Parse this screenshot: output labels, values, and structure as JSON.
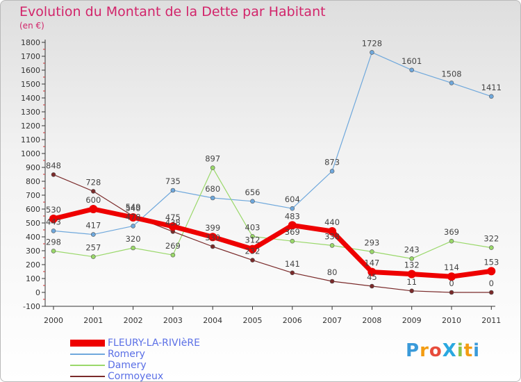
{
  "title": "Evolution du Montant de la Dette par Habitant",
  "subtitle": "(en €)",
  "logo": {
    "text": "ProXiti",
    "letters": [
      "P",
      "r",
      "o",
      "X",
      "i",
      "t",
      "i"
    ],
    "colors": [
      "#3a9ad9",
      "#f39c12",
      "#e74c3c",
      "#2aa8e0",
      "#8bc34a",
      "#f39c12",
      "#3a9ad9"
    ]
  },
  "chart_data": {
    "type": "line",
    "x": [
      "2000",
      "2001",
      "2002",
      "2003",
      "2004",
      "2005",
      "2006",
      "2007",
      "2008",
      "2009",
      "2010",
      "2011"
    ],
    "ylim": [
      -100,
      1800
    ],
    "yticks": [
      "-100",
      "0",
      "100",
      "200",
      "300",
      "400",
      "500",
      "600",
      "700",
      "800",
      "900",
      "1000",
      "1100",
      "1200",
      "1300",
      "1400",
      "1500",
      "1600",
      "1700",
      "1800"
    ],
    "grid": false,
    "series": [
      {
        "name": "FLEURY-LA-RIVIèRE",
        "color": "#ee0000",
        "width": 7,
        "marker": 6,
        "values": [
          530,
          600,
          540,
          475,
          399,
          312,
          483,
          440,
          147,
          132,
          114,
          153
        ],
        "labels": [
          "530",
          "600",
          "540",
          "475",
          "399",
          "312",
          "483",
          "440",
          "147",
          "132",
          "114",
          "153"
        ]
      },
      {
        "name": "Romery",
        "color": "#6fa8dc",
        "width": 1.2,
        "marker": 3,
        "values": [
          443,
          417,
          478,
          735,
          680,
          656,
          604,
          873,
          1728,
          1601,
          1508,
          1411
        ],
        "labels": [
          "443",
          "417",
          "478",
          "735",
          "680",
          "656",
          "604",
          "873",
          "1728",
          "1601",
          "1508",
          "1411"
        ]
      },
      {
        "name": "Damery",
        "color": "#9ad86a",
        "width": 1.2,
        "marker": 3,
        "values": [
          298,
          257,
          320,
          269,
          897,
          403,
          369,
          338,
          293,
          243,
          369,
          322
        ],
        "labels": [
          "298",
          "257",
          "320",
          "269",
          "897",
          "403",
          "369",
          "338",
          "293",
          "243",
          "369",
          "322"
        ]
      },
      {
        "name": "Cormoyeux",
        "color": "#7a2a2a",
        "width": 1.2,
        "marker": 3,
        "values": [
          848,
          728,
          549,
          438,
          330,
          232,
          141,
          80,
          45,
          11,
          0,
          0
        ],
        "labels": [
          "848",
          "728",
          "549",
          "438",
          "330",
          "232",
          "141",
          "80",
          "45",
          "11",
          "0",
          "0"
        ]
      }
    ]
  }
}
